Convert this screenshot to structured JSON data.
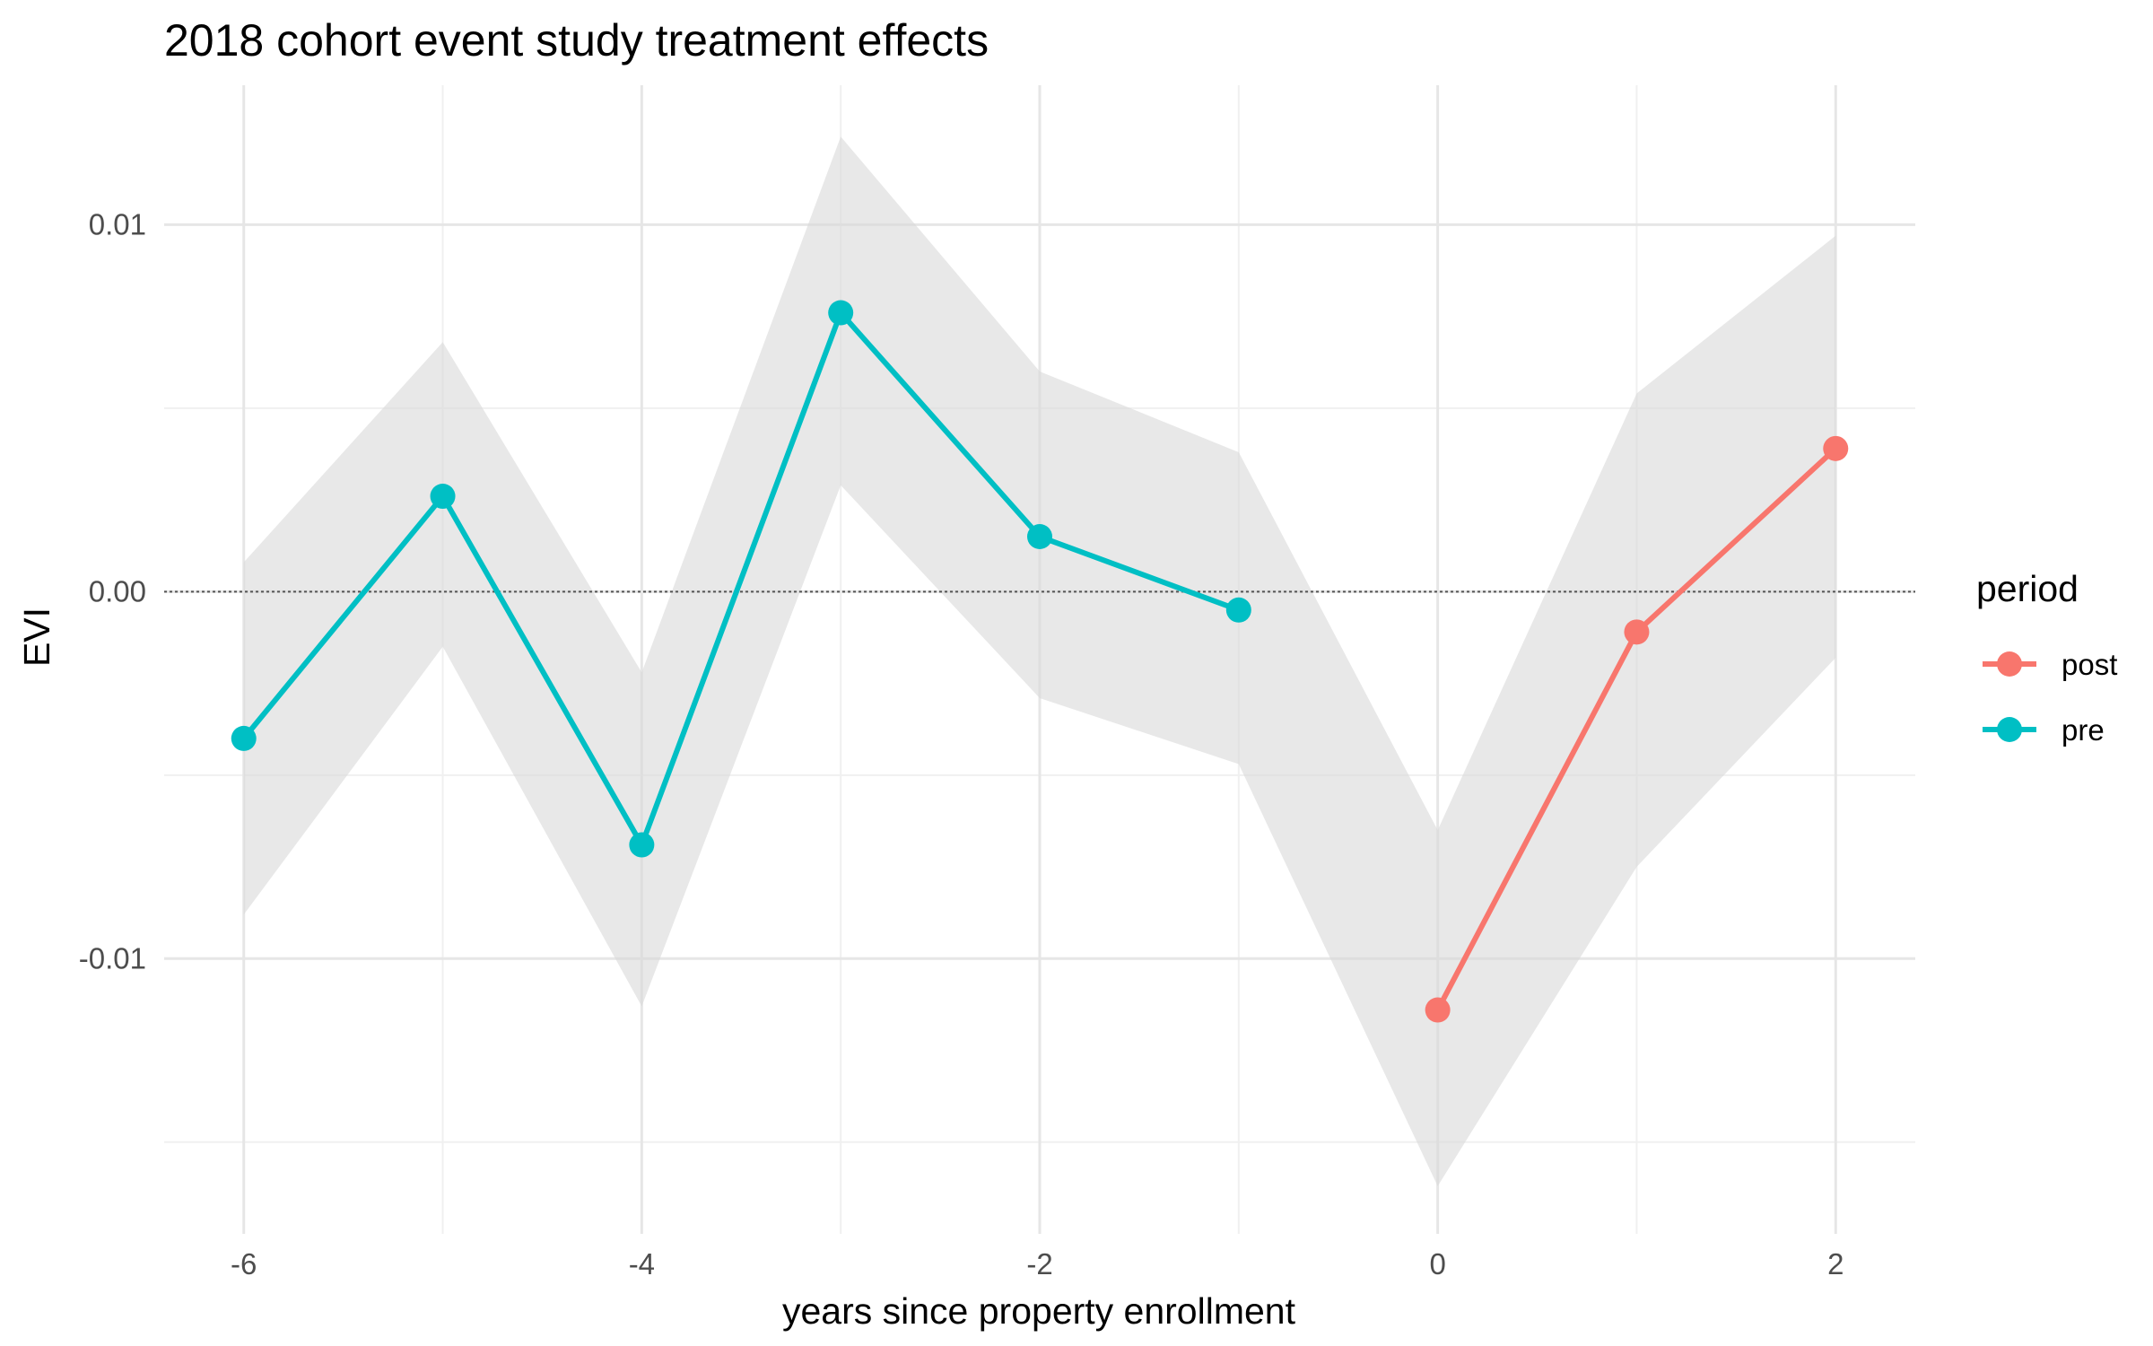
{
  "chart_data": {
    "type": "line",
    "title": "2018 cohort event study treatment effects",
    "xlabel": "years since property enrollment",
    "ylabel": "EVI",
    "xlim": [
      -6.4,
      2.4
    ],
    "ylim": [
      -0.0175,
      0.0138
    ],
    "x_ticks": [
      -6,
      -4,
      -2,
      0,
      2
    ],
    "x_tick_labels": [
      "-6",
      "-4",
      "-2",
      "0",
      "2"
    ],
    "x_minor_ticks": [
      -5,
      -3,
      -1,
      1
    ],
    "y_ticks": [
      -0.01,
      0.0,
      0.01
    ],
    "y_tick_labels": [
      "-0.01",
      "0.00",
      "0.01"
    ],
    "y_minor_ticks": [
      -0.015,
      -0.005,
      0.005
    ],
    "grid": true,
    "reference_line": {
      "y": 0,
      "style": "dotted"
    },
    "confidence_band": {
      "x": [
        -6,
        -5,
        -4,
        -3,
        -2,
        -1,
        0,
        1,
        2
      ],
      "lower": [
        -0.0088,
        -0.0015,
        -0.0113,
        0.0029,
        -0.0029,
        -0.0047,
        -0.0162,
        -0.0075,
        -0.0018
      ],
      "upper": [
        0.0008,
        0.0068,
        -0.0022,
        0.0124,
        0.006,
        0.0038,
        -0.0065,
        0.0054,
        0.0097
      ],
      "color": "#d9d9d9"
    },
    "legend": {
      "title": "period",
      "position": "right"
    },
    "series": [
      {
        "name": "post",
        "color": "#F8766D",
        "x": [
          0,
          1,
          2
        ],
        "values": [
          -0.0114,
          -0.0011,
          0.0039
        ]
      },
      {
        "name": "pre",
        "color": "#00BFC4",
        "x": [
          -6,
          -5,
          -4,
          -3,
          -2,
          -1
        ],
        "values": [
          -0.004,
          0.0026,
          -0.0069,
          0.0076,
          0.0015,
          -0.0005
        ]
      }
    ]
  }
}
